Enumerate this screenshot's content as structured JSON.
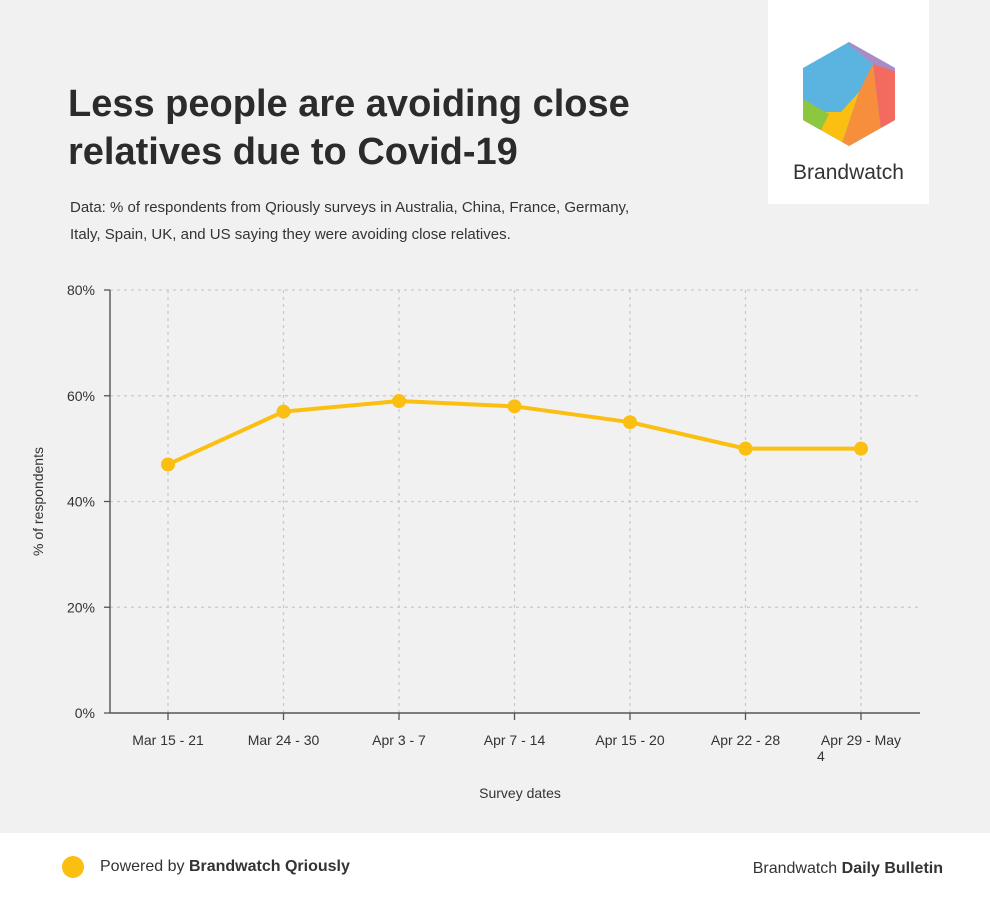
{
  "header": {
    "title": "Less people are avoiding close relatives due to Covid-19",
    "subtitle": "Data: % of respondents from Qriously surveys in Australia, China, France, Germany, Italy, Spain, UK, and US saying they were avoiding close relatives."
  },
  "logo": {
    "text": "Brandwatch",
    "icon": "brandwatch-hexagon-logo"
  },
  "footer": {
    "powered_prefix": "Powered by",
    "powered_brand": "Brandwatch Qriously",
    "right_prefix": "Brandwatch",
    "right_brand": "Daily Bulletin"
  },
  "colors": {
    "series": "#fbbf12",
    "background": "#f1f1f1",
    "grid": "#c9c9c9",
    "text": "#2b2b2b"
  },
  "chart_data": {
    "type": "line",
    "title": "Less people are avoiding close relatives due to Covid-19",
    "xlabel": "Survey dates",
    "ylabel": "% of respondents",
    "categories": [
      "Mar 15 - 21",
      "Mar 24 - 30",
      "Apr 3 - 7",
      "Apr 7 - 14",
      "Apr 15 - 20",
      "Apr 22 - 28",
      "Apr 29 - May 4"
    ],
    "values": [
      47,
      57,
      59,
      58,
      55,
      50,
      50
    ],
    "ylim": [
      0,
      80
    ],
    "yticks": [
      0,
      20,
      40,
      60,
      80
    ],
    "ytick_labels": [
      "0%",
      "20%",
      "40%",
      "60%",
      "80%"
    ],
    "grid": true
  }
}
